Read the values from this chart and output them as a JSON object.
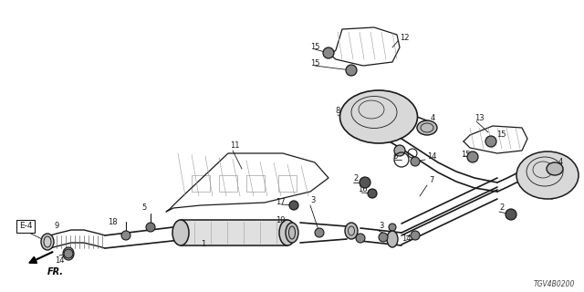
{
  "part_number": "TGV4B0200",
  "background_color": "#ffffff",
  "line_color": "#1a1a1a",
  "text_color": "#1a1a1a",
  "figsize": [
    6.4,
    3.2
  ],
  "dpi": 100,
  "xlim": [
    0,
    640
  ],
  "ylim": [
    0,
    320
  ]
}
